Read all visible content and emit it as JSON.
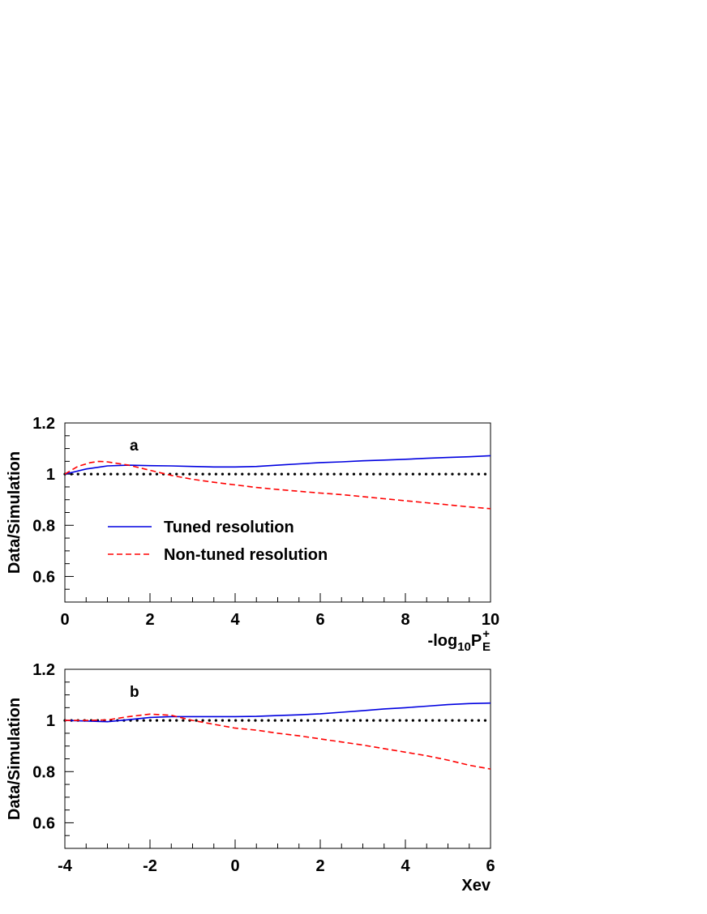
{
  "chart_data": [
    {
      "type": "line",
      "panel_label": "a",
      "ylabel": "Data/Simulation",
      "xlabel": {
        "base": "-log",
        "base_sub": "10",
        "main": "P",
        "main_sup": "+",
        "main_sub": "E"
      },
      "xlim": [
        0,
        10
      ],
      "ylim": [
        0.5,
        1.2
      ],
      "xticks": [
        0,
        2,
        4,
        6,
        8,
        10
      ],
      "xtick_labels": [
        "0",
        "2",
        "4",
        "6",
        "8",
        "10"
      ],
      "yticks": [
        0.6,
        0.8,
        1.0,
        1.2
      ],
      "ytick_labels": [
        "0.6",
        "0.8",
        "1",
        "1.2"
      ],
      "reference_line": {
        "y": 1.0,
        "style": "dotted",
        "color": "#000000"
      },
      "legend": {
        "placement": "lower-left"
      },
      "series": [
        {
          "name": "Tuned resolution",
          "color": "#0000e0",
          "style": "solid",
          "x": [
            0,
            0.5,
            1,
            1.5,
            2,
            2.5,
            3,
            3.5,
            4,
            4.5,
            5,
            5.5,
            6,
            6.5,
            7,
            7.5,
            8,
            8.5,
            9,
            9.5,
            10
          ],
          "y": [
            1.0,
            1.02,
            1.032,
            1.035,
            1.033,
            1.032,
            1.03,
            1.028,
            1.028,
            1.03,
            1.035,
            1.04,
            1.045,
            1.048,
            1.052,
            1.055,
            1.058,
            1.062,
            1.065,
            1.068,
            1.072
          ]
        },
        {
          "name": "Non-tuned resolution",
          "color": "#ff0000",
          "style": "dashed",
          "x": [
            0,
            0.3,
            0.6,
            0.8,
            1,
            1.5,
            2,
            2.5,
            3,
            3.5,
            4,
            4.5,
            5,
            5.5,
            6,
            6.5,
            7,
            7.5,
            8,
            8.5,
            9,
            9.5,
            10
          ],
          "y": [
            1.0,
            1.03,
            1.045,
            1.05,
            1.048,
            1.035,
            1.015,
            0.995,
            0.98,
            0.968,
            0.958,
            0.948,
            0.94,
            0.933,
            0.926,
            0.92,
            0.912,
            0.904,
            0.896,
            0.888,
            0.88,
            0.872,
            0.865
          ]
        }
      ]
    },
    {
      "type": "line",
      "panel_label": "b",
      "ylabel": "Data/Simulation",
      "xlabel": "Xev",
      "xlim": [
        -4,
        6
      ],
      "ylim": [
        0.5,
        1.2
      ],
      "xticks": [
        -4,
        -2,
        0,
        2,
        4,
        6
      ],
      "xtick_labels": [
        "-4",
        "-2",
        "0",
        "2",
        "4",
        "6"
      ],
      "yticks": [
        0.6,
        0.8,
        1.0,
        1.2
      ],
      "ytick_labels": [
        "0.6",
        "0.8",
        "1",
        "1.2"
      ],
      "reference_line": {
        "y": 1.0,
        "style": "dotted",
        "color": "#000000"
      },
      "series": [
        {
          "name": "Tuned resolution",
          "color": "#0000e0",
          "style": "solid",
          "x": [
            -4,
            -3.5,
            -3,
            -2.5,
            -2,
            -1.5,
            -1,
            -0.5,
            0,
            0.5,
            1,
            1.5,
            2,
            2.5,
            3,
            3.5,
            4,
            4.5,
            5,
            5.5,
            6
          ],
          "y": [
            1.0,
            0.998,
            0.995,
            1.003,
            1.012,
            1.015,
            1.015,
            1.015,
            1.015,
            1.016,
            1.019,
            1.022,
            1.026,
            1.032,
            1.038,
            1.045,
            1.05,
            1.056,
            1.062,
            1.066,
            1.068
          ]
        },
        {
          "name": "Non-tuned resolution",
          "color": "#ff0000",
          "style": "dashed",
          "x": [
            -4,
            -3.5,
            -3,
            -2.5,
            -2,
            -1.5,
            -1,
            -0.5,
            0,
            0.5,
            1,
            1.5,
            2,
            2.5,
            3,
            3.5,
            4,
            4.5,
            5,
            5.5,
            6
          ],
          "y": [
            1.0,
            1.0,
            1.002,
            1.015,
            1.025,
            1.02,
            1.0,
            0.985,
            0.97,
            0.962,
            0.95,
            0.94,
            0.928,
            0.916,
            0.904,
            0.89,
            0.876,
            0.862,
            0.845,
            0.825,
            0.81
          ]
        }
      ]
    }
  ]
}
